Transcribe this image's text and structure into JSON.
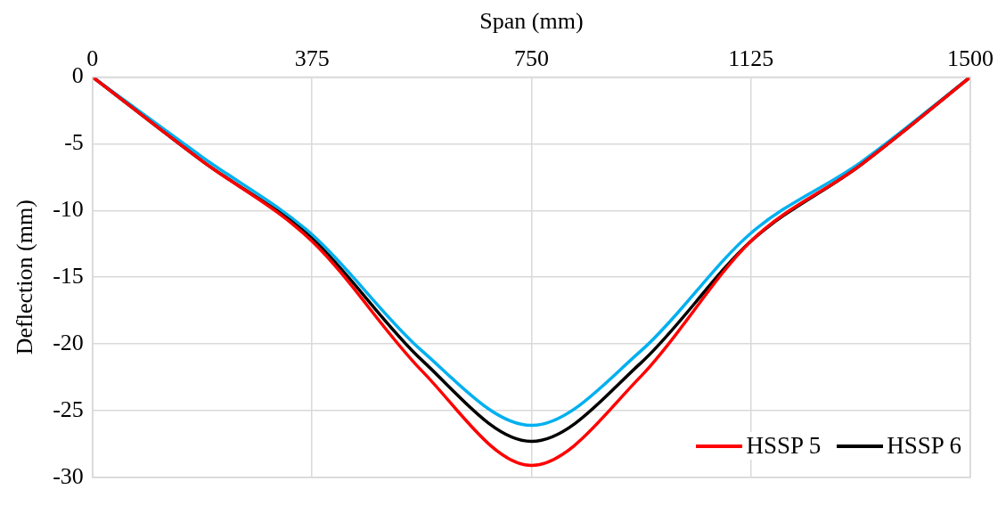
{
  "chart_data": {
    "type": "line",
    "xlabel": "Span (mm)",
    "ylabel": "Deflection (mm)",
    "x": [
      0,
      187.5,
      375,
      562.5,
      750,
      937.5,
      1125,
      1312.5,
      1500
    ],
    "series": [
      {
        "name": "HSSP 5",
        "color": "#ff0000",
        "values": [
          0,
          -6.3,
          -12.3,
          -22.0,
          -29.1,
          -22.4,
          -12.3,
          -6.6,
          0
        ]
      },
      {
        "name": "HSSP 6",
        "color": "#000000",
        "values": [
          0,
          -6.3,
          -12.1,
          -21.2,
          -27.3,
          -21.4,
          -12.3,
          -6.6,
          0
        ]
      },
      {
        "color": "#00b0f0",
        "values": [
          0,
          -6.0,
          -11.8,
          -20.5,
          -26.1,
          -20.5,
          -11.7,
          -6.4,
          0
        ]
      }
    ],
    "xlim": [
      0,
      1500
    ],
    "xticks": [
      0,
      375,
      750,
      1125,
      1500
    ],
    "ylim": [
      -30,
      0
    ],
    "yticks": [
      -30,
      -25,
      -20,
      -15,
      -10,
      -5,
      0
    ],
    "grid": true,
    "legend": "bottom right",
    "marker": "none",
    "line_style": "solid"
  }
}
